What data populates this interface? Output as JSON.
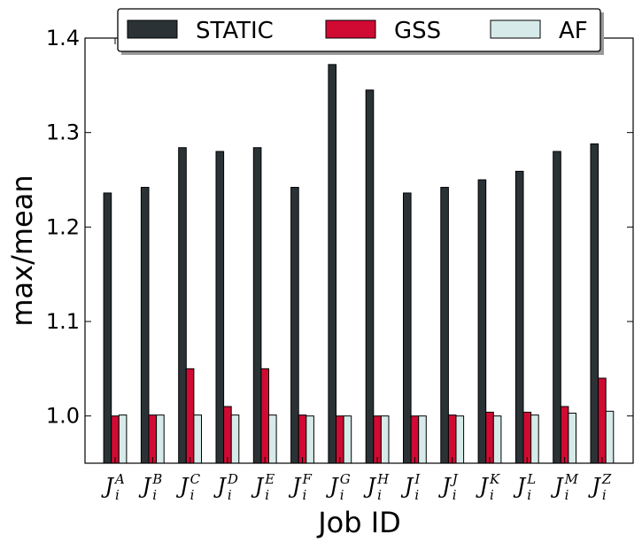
{
  "chart_data": {
    "type": "bar",
    "xlabel": "Job ID",
    "ylabel": "max/mean",
    "ylim": [
      0.95,
      1.4
    ],
    "yticks": [
      "1.0",
      "1.1",
      "1.2",
      "1.3",
      "1.4"
    ],
    "categories": [
      {
        "base": "J",
        "sup": "A",
        "sub": "i"
      },
      {
        "base": "J",
        "sup": "B",
        "sub": "i"
      },
      {
        "base": "J",
        "sup": "C",
        "sub": "i"
      },
      {
        "base": "J",
        "sup": "D",
        "sub": "i"
      },
      {
        "base": "J",
        "sup": "E",
        "sub": "i"
      },
      {
        "base": "J",
        "sup": "F",
        "sub": "i"
      },
      {
        "base": "J",
        "sup": "G",
        "sub": "i"
      },
      {
        "base": "J",
        "sup": "H",
        "sub": "i"
      },
      {
        "base": "J",
        "sup": "I",
        "sub": "i"
      },
      {
        "base": "J",
        "sup": "J",
        "sub": "i"
      },
      {
        "base": "J",
        "sup": "K",
        "sub": "i"
      },
      {
        "base": "J",
        "sup": "L",
        "sub": "i"
      },
      {
        "base": "J",
        "sup": "M",
        "sub": "i"
      },
      {
        "base": "J",
        "sup": "Z",
        "sub": "i"
      }
    ],
    "series": [
      {
        "name": "STATIC",
        "color": "#2b3236",
        "values": [
          1.236,
          1.242,
          1.284,
          1.28,
          1.284,
          1.242,
          1.372,
          1.345,
          1.236,
          1.242,
          1.25,
          1.259,
          1.28,
          1.288
        ]
      },
      {
        "name": "GSS",
        "color": "#d10a33",
        "values": [
          1.0,
          1.001,
          1.05,
          1.01,
          1.05,
          1.001,
          1.0,
          1.0,
          1.0,
          1.001,
          1.004,
          1.004,
          1.01,
          1.04
        ]
      },
      {
        "name": "AF",
        "color": "#d6ebe9",
        "values": [
          1.001,
          1.001,
          1.001,
          1.001,
          1.001,
          1.0,
          1.0,
          1.0,
          1.0,
          1.0,
          1.0,
          1.001,
          1.003,
          1.005
        ]
      }
    ],
    "legend": {
      "position": "top-center",
      "columns": 3
    }
  }
}
